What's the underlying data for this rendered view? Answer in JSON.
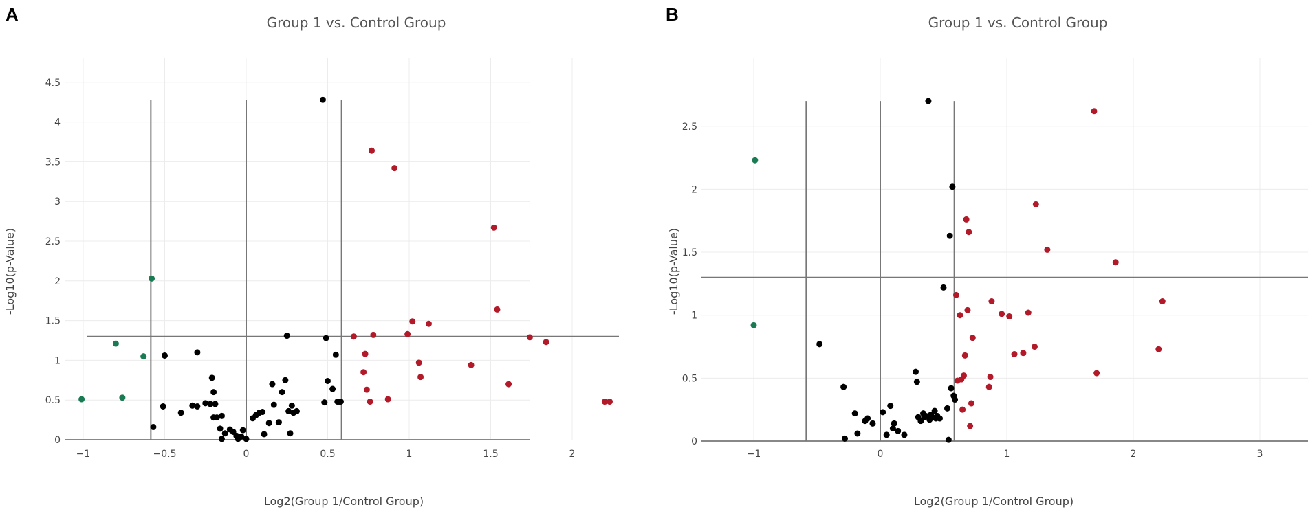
{
  "chart_data": [
    {
      "panel_label": "A",
      "type": "scatter",
      "title": "Group 1 vs. Control Group",
      "xlabel": "Log2(Group 1/Control Group)",
      "ylabel": "-Log10(p-Value)",
      "xlim": [
        -1.1,
        2.4
      ],
      "ylim": [
        0,
        4.5
      ],
      "xticks": [
        -1,
        -0.5,
        0,
        0.5,
        1,
        1.5,
        2
      ],
      "xtick_labels": [
        "−1",
        "−0.5",
        "0",
        "0.5",
        "1",
        "1.5",
        "2"
      ],
      "yticks": [
        0,
        0.5,
        1,
        1.5,
        2,
        2.5,
        3,
        3.5,
        4,
        4.5
      ],
      "ytick_labels": [
        "0",
        "0.5",
        "1",
        "1.5",
        "2",
        "2.5",
        "3",
        "3.5",
        "4",
        "4.5"
      ],
      "thresholds": {
        "vertical": [
          -0.585,
          0,
          0.585
        ],
        "horizontal": 1.3,
        "vertical_top": 4.28
      },
      "grid": true,
      "colors": {
        "down": "#1a7a52",
        "up": "#b21a2a",
        "ns": "#000000",
        "threshold": "#777777",
        "grid": "#ececec"
      },
      "series": [
        {
          "name": "down",
          "x": [
            -1.01,
            -0.8,
            -0.76,
            -0.63,
            -0.58
          ],
          "y": [
            0.51,
            1.21,
            0.53,
            1.05,
            2.03
          ]
        },
        {
          "name": "up",
          "x": [
            0.66,
            0.72,
            0.73,
            0.74,
            0.76,
            0.77,
            0.78,
            0.87,
            0.91,
            0.99,
            1.02,
            1.06,
            1.07,
            1.12,
            1.38,
            1.52,
            1.54,
            1.61,
            1.74,
            1.84,
            2.2,
            2.23
          ],
          "y": [
            1.3,
            0.85,
            1.08,
            0.63,
            0.48,
            3.64,
            1.32,
            0.51,
            3.42,
            1.33,
            1.49,
            0.97,
            0.79,
            1.46,
            0.94,
            2.67,
            1.64,
            0.7,
            1.29,
            1.23,
            0.48,
            0.48
          ]
        },
        {
          "name": "ns",
          "x": [
            -0.57,
            -0.51,
            -0.5,
            -0.4,
            -0.33,
            -0.3,
            -0.3,
            -0.25,
            -0.22,
            -0.21,
            -0.2,
            -0.2,
            -0.19,
            -0.18,
            -0.16,
            -0.15,
            -0.15,
            -0.13,
            -0.1,
            -0.08,
            -0.06,
            -0.05,
            -0.03,
            -0.02,
            0,
            0.04,
            0.06,
            0.08,
            0.1,
            0.11,
            0.14,
            0.16,
            0.17,
            0.2,
            0.22,
            0.24,
            0.25,
            0.26,
            0.27,
            0.28,
            0.29,
            0.31,
            0.47,
            0.48,
            0.49,
            0.5,
            0.53,
            0.55,
            0.56,
            0.57,
            0.58
          ],
          "y": [
            0.16,
            0.42,
            1.06,
            0.34,
            0.43,
            0.42,
            1.1,
            0.46,
            0.45,
            0.78,
            0.28,
            0.6,
            0.45,
            0.28,
            0.14,
            0.01,
            0.3,
            0.08,
            0.13,
            0.1,
            0.05,
            0.01,
            0.04,
            0.12,
            0.01,
            0.27,
            0.31,
            0.34,
            0.35,
            0.07,
            0.21,
            0.7,
            0.44,
            0.22,
            0.6,
            0.75,
            1.31,
            0.36,
            0.08,
            0.43,
            0.34,
            0.36,
            4.28,
            0.47,
            1.28,
            0.74,
            0.64,
            1.07,
            0.48,
            0.48,
            0.48
          ]
        }
      ]
    },
    {
      "panel_label": "B",
      "type": "scatter",
      "title": "Group 1 vs. Control Group",
      "xlabel": "Log2(Group 1/Control Group)",
      "ylabel": "-Log10(p-Value)",
      "xlim": [
        -1.2,
        3.45
      ],
      "ylim": [
        0,
        2.75
      ],
      "xticks": [
        -1,
        0,
        1,
        2,
        3
      ],
      "xtick_labels": [
        "−1",
        "0",
        "1",
        "2",
        "3"
      ],
      "yticks": [
        0,
        0.5,
        1,
        1.5,
        2,
        2.5
      ],
      "ytick_labels": [
        "0",
        "0.5",
        "1",
        "1.5",
        "2",
        "2.5"
      ],
      "thresholds": {
        "vertical": [
          -0.585,
          0,
          0.585
        ],
        "horizontal": 1.3,
        "vertical_top": 2.7
      },
      "grid": true,
      "colors": {
        "down": "#1a7a52",
        "up": "#b21a2a",
        "ns": "#000000",
        "threshold": "#777777",
        "grid": "#ececec"
      },
      "series": [
        {
          "name": "down",
          "x": [
            -1.0,
            -0.99
          ],
          "y": [
            0.92,
            2.23
          ]
        },
        {
          "name": "up",
          "x": [
            0.6,
            0.61,
            0.63,
            0.64,
            0.65,
            0.66,
            0.67,
            0.68,
            0.69,
            0.7,
            0.71,
            0.72,
            0.73,
            0.86,
            0.87,
            0.88,
            0.96,
            1.02,
            1.06,
            1.13,
            1.17,
            1.22,
            1.23,
            1.32,
            1.69,
            1.71,
            1.86,
            2.2,
            2.23
          ],
          "y": [
            1.16,
            0.48,
            1.0,
            0.49,
            0.25,
            0.52,
            0.68,
            1.76,
            1.04,
            1.66,
            0.12,
            0.3,
            0.82,
            0.43,
            0.51,
            1.11,
            1.01,
            0.99,
            0.69,
            0.7,
            1.02,
            0.75,
            1.88,
            1.52,
            2.62,
            0.54,
            1.42,
            0.73,
            1.11
          ]
        },
        {
          "name": "ns",
          "x": [
            -0.48,
            -0.29,
            -0.28,
            -0.2,
            -0.18,
            -0.12,
            -0.1,
            -0.06,
            0.02,
            0.05,
            0.08,
            0.1,
            0.11,
            0.14,
            0.19,
            0.28,
            0.29,
            0.3,
            0.32,
            0.34,
            0.35,
            0.36,
            0.38,
            0.39,
            0.4,
            0.41,
            0.43,
            0.44,
            0.45,
            0.47,
            0.5,
            0.53,
            0.54,
            0.55,
            0.56,
            0.57,
            0.58,
            0.59
          ],
          "y": [
            0.77,
            0.43,
            0.02,
            0.22,
            0.06,
            0.16,
            0.18,
            0.14,
            0.23,
            0.05,
            0.28,
            0.1,
            0.14,
            0.08,
            0.05,
            0.55,
            0.47,
            0.19,
            0.16,
            0.22,
            0.19,
            0.2,
            2.7,
            0.17,
            0.21,
            0.19,
            0.24,
            0.18,
            0.2,
            0.18,
            1.22,
            0.26,
            0.01,
            1.63,
            0.42,
            2.02,
            0.36,
            0.33
          ]
        }
      ]
    }
  ]
}
